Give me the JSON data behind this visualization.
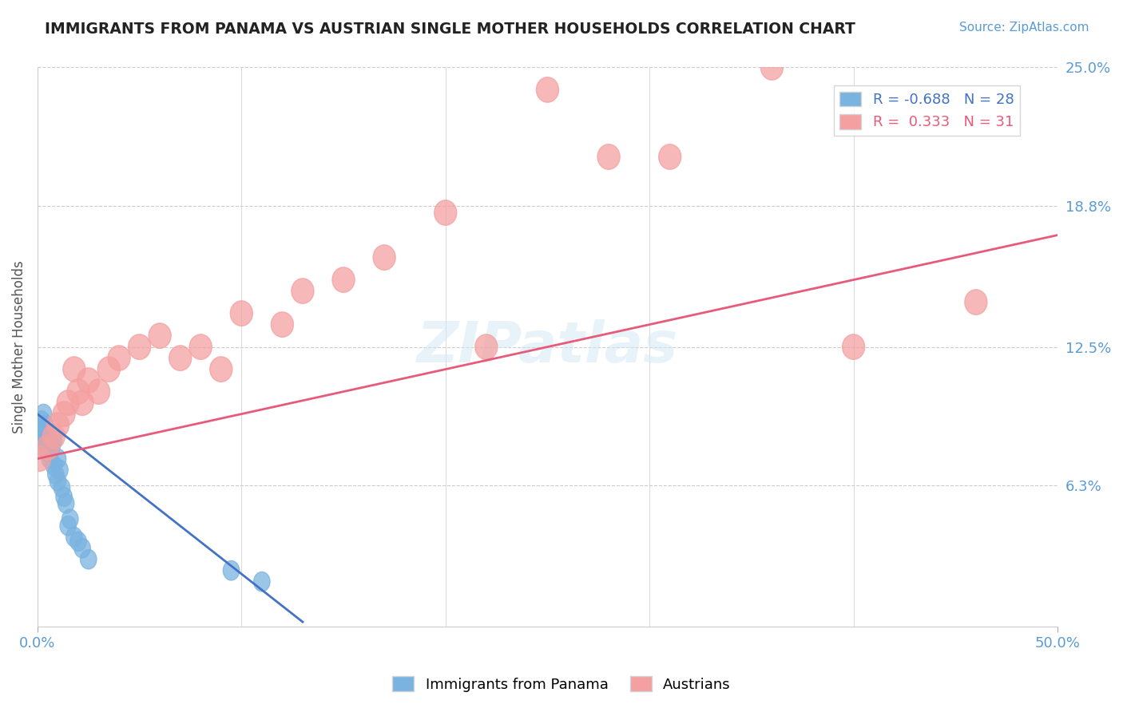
{
  "title": "IMMIGRANTS FROM PANAMA VS AUSTRIAN SINGLE MOTHER HOUSEHOLDS CORRELATION CHART",
  "source_text": "Source: ZipAtlas.com",
  "ylabel": "Single Mother Households",
  "xlim": [
    0.0,
    0.5
  ],
  "ylim": [
    0.0,
    0.25
  ],
  "ytick_positions": [
    0.0,
    0.063,
    0.125,
    0.188,
    0.25
  ],
  "ytick_labels": [
    "",
    "6.3%",
    "12.5%",
    "18.8%",
    "25.0%"
  ],
  "grid_color": "#cccccc",
  "background_color": "#ffffff",
  "blue_color": "#7ab3e0",
  "pink_color": "#f4a0a0",
  "blue_line_color": "#4472c4",
  "pink_line_color": "#e85a7a",
  "legend_R_blue": "-0.688",
  "legend_N_blue": "28",
  "legend_R_pink": "0.333",
  "legend_N_pink": "31",
  "legend_label_blue": "Immigrants from Panama",
  "legend_label_pink": "Austrians",
  "watermark": "ZIPatlas",
  "blue_scatter": {
    "x": [
      0.001,
      0.002,
      0.002,
      0.003,
      0.003,
      0.004,
      0.004,
      0.005,
      0.005,
      0.006,
      0.007,
      0.008,
      0.008,
      0.009,
      0.01,
      0.01,
      0.011,
      0.012,
      0.013,
      0.014,
      0.015,
      0.016,
      0.018,
      0.02,
      0.022,
      0.025,
      0.095,
      0.11
    ],
    "y": [
      0.09,
      0.085,
      0.092,
      0.095,
      0.088,
      0.082,
      0.09,
      0.078,
      0.085,
      0.075,
      0.08,
      0.072,
      0.083,
      0.068,
      0.065,
      0.075,
      0.07,
      0.062,
      0.058,
      0.055,
      0.045,
      0.048,
      0.04,
      0.038,
      0.035,
      0.03,
      0.025,
      0.02
    ]
  },
  "pink_scatter": {
    "x": [
      0.001,
      0.005,
      0.008,
      0.01,
      0.013,
      0.015,
      0.018,
      0.02,
      0.022,
      0.025,
      0.03,
      0.035,
      0.04,
      0.05,
      0.06,
      0.07,
      0.08,
      0.09,
      0.1,
      0.12,
      0.13,
      0.15,
      0.17,
      0.2,
      0.22,
      0.25,
      0.28,
      0.31,
      0.36,
      0.4,
      0.46
    ],
    "y": [
      0.075,
      0.08,
      0.085,
      0.09,
      0.095,
      0.1,
      0.115,
      0.105,
      0.1,
      0.11,
      0.105,
      0.115,
      0.12,
      0.125,
      0.13,
      0.12,
      0.125,
      0.115,
      0.14,
      0.135,
      0.15,
      0.155,
      0.165,
      0.185,
      0.125,
      0.24,
      0.21,
      0.21,
      0.25,
      0.125,
      0.145
    ]
  },
  "blue_trend_x": [
    0.0,
    0.13
  ],
  "blue_trend_y": [
    0.095,
    0.002
  ],
  "pink_trend_x": [
    0.0,
    0.5
  ],
  "pink_trend_y": [
    0.075,
    0.175
  ],
  "xtick_positions": [
    0.0,
    0.5
  ],
  "xtick_labels": [
    "0.0%",
    "50.0%"
  ],
  "vertical_grid_x": [
    0.0,
    0.1,
    0.2,
    0.3,
    0.4,
    0.5
  ]
}
